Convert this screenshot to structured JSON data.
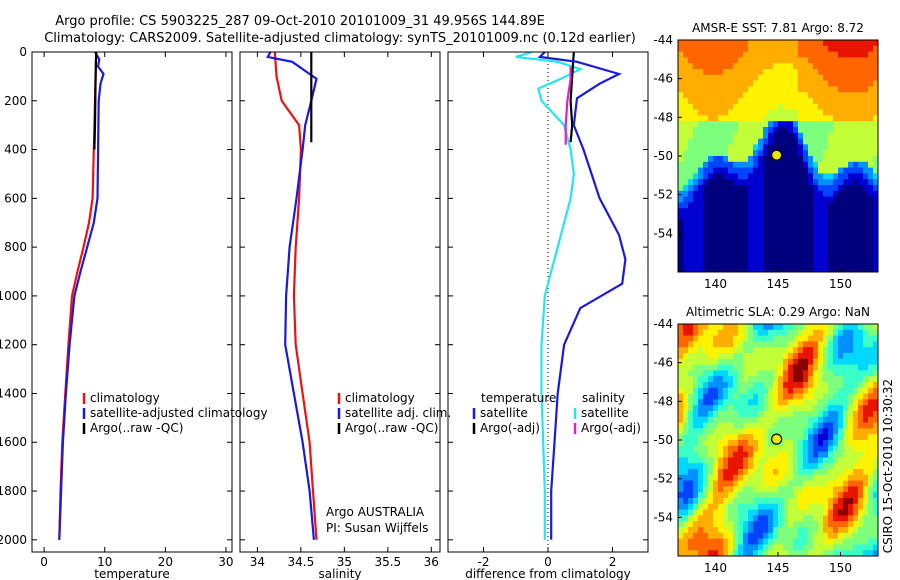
{
  "figure": {
    "title_line1": "Argo profile: CS 5903225_287 09-Oct-2010 20101009_31 49.956S 144.89E",
    "title_line2": "Climatology: CARS2009. Satellite-adjusted climatology: synTS_20101009.nc (0.12d earlier)",
    "credit": "CSIRO 15-Oct-2010 10:30:32"
  },
  "colors": {
    "red": "#ee1111",
    "blue": "#1a1adc",
    "black": "#000000",
    "cyan": "#22e6f0",
    "magenta": "#dd22cc"
  },
  "chart_data": [
    {
      "type": "line",
      "id": "temperature",
      "xlabel": "temperature",
      "ylabel": "",
      "xlim": [
        -2,
        31
      ],
      "ylim": [
        2050,
        0
      ],
      "xticks": [
        0,
        10,
        20,
        30
      ],
      "yticks": [
        0,
        200,
        400,
        600,
        800,
        1000,
        1200,
        1400,
        1600,
        1800,
        2000
      ],
      "legend_position": "lower-right",
      "legend": [
        "climatology",
        "satellite-adjusted climatology",
        "Argo(..raw -QC)"
      ],
      "series": [
        {
          "name": "climatology",
          "color": "red",
          "points": [
            [
              8.6,
              0
            ],
            [
              8.5,
              100
            ],
            [
              8.4,
              200
            ],
            [
              8.2,
              400
            ],
            [
              8.0,
              600
            ],
            [
              7.4,
              700
            ],
            [
              6.5,
              800
            ],
            [
              5.5,
              900
            ],
            [
              4.6,
              1000
            ],
            [
              4.0,
              1200
            ],
            [
              3.5,
              1400
            ],
            [
              3.0,
              1600
            ],
            [
              2.7,
              1800
            ],
            [
              2.5,
              2000
            ]
          ]
        },
        {
          "name": "satellite-adjusted climatology",
          "color": "blue",
          "points": [
            [
              8.4,
              0
            ],
            [
              9.1,
              30
            ],
            [
              8.9,
              60
            ],
            [
              9.8,
              90
            ],
            [
              9.3,
              130
            ],
            [
              9.0,
              200
            ],
            [
              8.9,
              400
            ],
            [
              8.8,
              600
            ],
            [
              8.2,
              700
            ],
            [
              7.1,
              800
            ],
            [
              6.0,
              900
            ],
            [
              5.0,
              1000
            ],
            [
              4.2,
              1200
            ],
            [
              3.6,
              1400
            ],
            [
              3.1,
              1600
            ],
            [
              2.8,
              1800
            ],
            [
              2.5,
              2000
            ]
          ]
        },
        {
          "name": "Argo(..raw -QC)",
          "color": "black",
          "points": [
            [
              8.6,
              0
            ],
            [
              8.5,
              100
            ],
            [
              8.45,
              200
            ],
            [
              8.4,
              300
            ],
            [
              8.3,
              400
            ]
          ]
        }
      ]
    },
    {
      "type": "line",
      "id": "salinity",
      "xlabel": "salinity",
      "ylabel": "",
      "xlim": [
        33.8,
        36.1
      ],
      "ylim": [
        2050,
        0
      ],
      "xticks": [
        34,
        34.5,
        35,
        35.5,
        36
      ],
      "legend_position": "lower-right",
      "legend": [
        "climatology",
        "satellite adj. clim.",
        "Argo(..raw -QC)"
      ],
      "annotation_line1": "Argo AUSTRALIA",
      "annotation_line2": "PI: Susan Wijffels",
      "series": [
        {
          "name": "climatology",
          "color": "red",
          "points": [
            [
              34.2,
              0
            ],
            [
              34.22,
              100
            ],
            [
              34.28,
              200
            ],
            [
              34.48,
              300
            ],
            [
              34.5,
              400
            ],
            [
              34.48,
              600
            ],
            [
              34.44,
              800
            ],
            [
              34.42,
              1000
            ],
            [
              34.44,
              1200
            ],
            [
              34.52,
              1400
            ],
            [
              34.6,
              1600
            ],
            [
              34.64,
              1800
            ],
            [
              34.68,
              2000
            ]
          ]
        },
        {
          "name": "satellite adj. clim.",
          "color": "blue",
          "points": [
            [
              34.15,
              0
            ],
            [
              34.12,
              20
            ],
            [
              34.4,
              40
            ],
            [
              34.6,
              90
            ],
            [
              34.68,
              110
            ],
            [
              34.62,
              200
            ],
            [
              34.55,
              300
            ],
            [
              34.52,
              400
            ],
            [
              34.45,
              600
            ],
            [
              34.37,
              800
            ],
            [
              34.33,
              1000
            ],
            [
              34.32,
              1200
            ],
            [
              34.42,
              1400
            ],
            [
              34.52,
              1600
            ],
            [
              34.6,
              1800
            ],
            [
              34.65,
              2000
            ]
          ]
        },
        {
          "name": "Argo(..raw -QC)",
          "color": "black",
          "points": [
            [
              34.62,
              0
            ],
            [
              34.62,
              100
            ],
            [
              34.62,
              200
            ],
            [
              34.62,
              300
            ],
            [
              34.62,
              370
            ]
          ]
        }
      ]
    },
    {
      "type": "line",
      "id": "difference",
      "xlabel": "difference from climatology",
      "ylabel": "",
      "xlim": [
        -3.1,
        3.1
      ],
      "ylim": [
        2050,
        0
      ],
      "xticks": [
        -2,
        0,
        2
      ],
      "zero_line": true,
      "legend_position": "lower-right",
      "legend_left_title": "temperature",
      "legend_right_title": "salinity",
      "legend": [
        "satellite",
        "Argo(-adj)",
        "satellite",
        "Argo(-adj)"
      ],
      "series": [
        {
          "name": "temperature satellite",
          "color": "cyan",
          "points": [
            [
              -0.5,
              0
            ],
            [
              -1.0,
              20
            ],
            [
              0.3,
              40
            ],
            [
              1.0,
              70
            ],
            [
              0.4,
              110
            ],
            [
              -0.3,
              150
            ],
            [
              -0.2,
              200
            ],
            [
              0.5,
              300
            ],
            [
              0.7,
              400
            ],
            [
              0.8,
              500
            ],
            [
              0.7,
              600
            ],
            [
              0.5,
              700
            ],
            [
              0.3,
              800
            ],
            [
              0.1,
              900
            ],
            [
              -0.1,
              1000
            ],
            [
              -0.2,
              1200
            ],
            [
              -0.2,
              1400
            ],
            [
              -0.15,
              1600
            ],
            [
              -0.1,
              1800
            ],
            [
              -0.1,
              2000
            ]
          ]
        },
        {
          "name": "temperature Argo(-adj)",
          "color": "black",
          "points": [
            [
              0.8,
              0
            ],
            [
              0.75,
              100
            ],
            [
              0.7,
              200
            ],
            [
              0.75,
              300
            ],
            [
              0.7,
              370
            ]
          ]
        },
        {
          "name": "salinity satellite",
          "color": "blue",
          "points": [
            [
              -0.1,
              0
            ],
            [
              -0.25,
              20
            ],
            [
              0.9,
              40
            ],
            [
              2.2,
              90
            ],
            [
              1.6,
              130
            ],
            [
              0.9,
              190
            ],
            [
              0.8,
              300
            ],
            [
              1.1,
              400
            ],
            [
              1.6,
              600
            ],
            [
              2.2,
              750
            ],
            [
              2.4,
              850
            ],
            [
              2.3,
              950
            ],
            [
              1.0,
              1050
            ],
            [
              0.5,
              1200
            ],
            [
              0.3,
              1400
            ],
            [
              0.2,
              1600
            ],
            [
              0.1,
              1800
            ],
            [
              0.1,
              2000
            ]
          ]
        },
        {
          "name": "salinity Argo(-adj)",
          "color": "magenta",
          "points": [
            [
              0.7,
              60
            ],
            [
              0.7,
              110
            ],
            [
              0.6,
              200
            ],
            [
              0.55,
              300
            ],
            [
              0.55,
              380
            ]
          ]
        }
      ]
    },
    {
      "type": "heatmap",
      "id": "sst-map",
      "title": "AMSR-E SST: 7.81 Argo: 8.72",
      "xlim": [
        137,
        153
      ],
      "ylim": [
        -56,
        -44
      ],
      "xticks": [
        140,
        145,
        150
      ],
      "yticks": [
        -44,
        -46,
        -48,
        -50,
        -52,
        -54
      ],
      "marker": {
        "lon": 144.89,
        "lat": -49.956
      }
    },
    {
      "type": "heatmap",
      "id": "sla-map",
      "title": "Altimetric SLA: 0.29 Argo: NaN",
      "xlim": [
        137,
        153
      ],
      "ylim": [
        -56,
        -44
      ],
      "xticks": [
        140,
        145,
        150
      ],
      "yticks": [
        -44,
        -46,
        -48,
        -50,
        -52,
        -54
      ],
      "marker": {
        "lon": 144.89,
        "lat": -49.956
      }
    }
  ]
}
